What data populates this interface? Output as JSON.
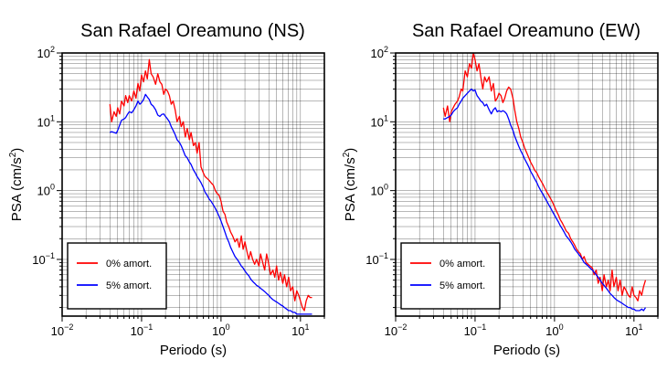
{
  "chart_data": [
    {
      "type": "line",
      "title": "San Rafael Oreamuno (NS)",
      "xlabel": "Periodo (s)",
      "ylabel_base": "PSA (cm/s",
      "ylabel_exp": "2",
      "ylabel_close": ")",
      "xscale": "log",
      "yscale": "log",
      "xlim": [
        0.01,
        20
      ],
      "ylim": [
        0.015,
        100
      ],
      "grid": true,
      "legend_position": "bottom-left",
      "x_ticks": [
        {
          "value": 0.01,
          "base": "10",
          "exp": "−2"
        },
        {
          "value": 0.1,
          "base": "10",
          "exp": "−1"
        },
        {
          "value": 1,
          "base": "10",
          "exp": "0"
        },
        {
          "value": 10,
          "base": "10",
          "exp": "1"
        }
      ],
      "y_ticks": [
        {
          "value": 0.1,
          "base": "10",
          "exp": "−1"
        },
        {
          "value": 1,
          "base": "10",
          "exp": "0"
        },
        {
          "value": 10,
          "base": "10",
          "exp": "1"
        },
        {
          "value": 100,
          "base": "10",
          "exp": "2"
        }
      ],
      "series": [
        {
          "name": "0% amort.",
          "color": "#ff0000",
          "x": [
            0.04,
            0.042,
            0.045,
            0.048,
            0.05,
            0.053,
            0.056,
            0.06,
            0.063,
            0.067,
            0.07,
            0.075,
            0.08,
            0.085,
            0.09,
            0.095,
            0.1,
            0.106,
            0.112,
            0.118,
            0.125,
            0.132,
            0.14,
            0.15,
            0.16,
            0.17,
            0.18,
            0.19,
            0.2,
            0.212,
            0.224,
            0.236,
            0.25,
            0.265,
            0.28,
            0.3,
            0.315,
            0.335,
            0.355,
            0.375,
            0.4,
            0.42,
            0.45,
            0.475,
            0.5,
            0.53,
            0.56,
            0.6,
            0.63,
            0.67,
            0.71,
            0.75,
            0.8,
            0.85,
            0.9,
            0.95,
            1.0,
            1.06,
            1.12,
            1.18,
            1.25,
            1.32,
            1.4,
            1.5,
            1.6,
            1.7,
            1.8,
            1.9,
            2.0,
            2.12,
            2.24,
            2.36,
            2.5,
            2.65,
            2.8,
            3.0,
            3.15,
            3.35,
            3.55,
            3.75,
            4.0,
            4.2,
            4.5,
            4.75,
            5.0,
            5.3,
            5.6,
            6.0,
            6.3,
            6.7,
            7.1,
            7.5,
            8.0,
            8.5,
            9.0,
            9.5,
            10.0,
            10.6,
            11.2,
            11.8,
            12.5,
            13.2,
            14.0
          ],
          "y": [
            18,
            10,
            14,
            12,
            16,
            13,
            20,
            17,
            24,
            19,
            24,
            20,
            28,
            22,
            36,
            28,
            48,
            38,
            55,
            42,
            80,
            50,
            45,
            35,
            50,
            38,
            35,
            25,
            30,
            28,
            24,
            18,
            20,
            15,
            10,
            12,
            8.5,
            10,
            6,
            8,
            5.5,
            7,
            4.5,
            5,
            3.5,
            5,
            2.2,
            1.8,
            1.6,
            1.5,
            1.4,
            1.3,
            1.2,
            1.0,
            0.9,
            0.85,
            0.7,
            0.5,
            0.45,
            0.35,
            0.3,
            0.25,
            0.22,
            0.18,
            0.2,
            0.15,
            0.22,
            0.14,
            0.18,
            0.13,
            0.1,
            0.13,
            0.1,
            0.085,
            0.1,
            0.08,
            0.12,
            0.09,
            0.07,
            0.12,
            0.085,
            0.06,
            0.07,
            0.055,
            0.08,
            0.05,
            0.065,
            0.045,
            0.06,
            0.04,
            0.055,
            0.035,
            0.04,
            0.025,
            0.035,
            0.03,
            0.025,
            0.02,
            0.018,
            0.025,
            0.03,
            0.028,
            0.028
          ]
        },
        {
          "name": "5% amort.",
          "color": "#0000ff",
          "x": [
            0.04,
            0.042,
            0.045,
            0.048,
            0.05,
            0.053,
            0.056,
            0.06,
            0.063,
            0.067,
            0.07,
            0.075,
            0.08,
            0.085,
            0.09,
            0.095,
            0.1,
            0.106,
            0.112,
            0.118,
            0.125,
            0.132,
            0.14,
            0.15,
            0.16,
            0.17,
            0.18,
            0.19,
            0.2,
            0.212,
            0.224,
            0.236,
            0.25,
            0.265,
            0.28,
            0.3,
            0.315,
            0.335,
            0.355,
            0.375,
            0.4,
            0.42,
            0.45,
            0.475,
            0.5,
            0.53,
            0.56,
            0.6,
            0.63,
            0.67,
            0.71,
            0.75,
            0.8,
            0.85,
            0.9,
            0.95,
            1.0,
            1.06,
            1.12,
            1.18,
            1.25,
            1.32,
            1.4,
            1.5,
            1.6,
            1.7,
            1.8,
            1.9,
            2.0,
            2.12,
            2.24,
            2.36,
            2.5,
            2.65,
            2.8,
            3.0,
            3.15,
            3.35,
            3.55,
            3.75,
            4.0,
            4.2,
            4.5,
            4.75,
            5.0,
            5.3,
            5.6,
            6.0,
            6.3,
            6.7,
            7.1,
            7.5,
            8.0,
            8.5,
            9.0,
            9.5,
            10.0,
            10.6,
            11.2,
            11.8,
            12.5,
            13.2,
            14.0
          ],
          "y": [
            7,
            7.2,
            7,
            6.8,
            7.5,
            9,
            10.5,
            11,
            11.5,
            13,
            14,
            13.5,
            15,
            17,
            20,
            18,
            19,
            21,
            25,
            23,
            21,
            18,
            17,
            15,
            12.5,
            12,
            12.8,
            13,
            12,
            11,
            10,
            8.5,
            7.5,
            6.5,
            5.5,
            5,
            4.5,
            3.8,
            3.2,
            3,
            2.6,
            2.4,
            2.0,
            1.8,
            1.6,
            1.45,
            1.3,
            1.1,
            0.95,
            0.85,
            0.75,
            0.7,
            0.62,
            0.55,
            0.48,
            0.42,
            0.36,
            0.3,
            0.25,
            0.21,
            0.18,
            0.15,
            0.13,
            0.11,
            0.1,
            0.09,
            0.08,
            0.075,
            0.068,
            0.062,
            0.058,
            0.052,
            0.048,
            0.045,
            0.042,
            0.04,
            0.038,
            0.036,
            0.034,
            0.032,
            0.03,
            0.028,
            0.026,
            0.025,
            0.024,
            0.023,
            0.022,
            0.021,
            0.02,
            0.019,
            0.018,
            0.018,
            0.017,
            0.017,
            0.016,
            0.016,
            0.016,
            0.016,
            0.016,
            0.016,
            0.016,
            0.016,
            0.016
          ]
        }
      ]
    },
    {
      "type": "line",
      "title": "San Rafael Oreamuno (EW)",
      "xlabel": "Periodo (s)",
      "ylabel_base": "PSA (cm/s",
      "ylabel_exp": "2",
      "ylabel_close": ")",
      "xscale": "log",
      "yscale": "log",
      "xlim": [
        0.01,
        20
      ],
      "ylim": [
        0.015,
        100
      ],
      "grid": true,
      "legend_position": "bottom-left",
      "x_ticks": [
        {
          "value": 0.01,
          "base": "10",
          "exp": "−2"
        },
        {
          "value": 0.1,
          "base": "10",
          "exp": "−1"
        },
        {
          "value": 1,
          "base": "10",
          "exp": "0"
        },
        {
          "value": 10,
          "base": "10",
          "exp": "1"
        }
      ],
      "y_ticks": [
        {
          "value": 0.1,
          "base": "10",
          "exp": "−1"
        },
        {
          "value": 1,
          "base": "10",
          "exp": "0"
        },
        {
          "value": 10,
          "base": "10",
          "exp": "1"
        },
        {
          "value": 100,
          "base": "10",
          "exp": "2"
        }
      ],
      "series": [
        {
          "name": "0% amort.",
          "color": "#ff0000",
          "x": [
            0.04,
            0.042,
            0.045,
            0.048,
            0.05,
            0.053,
            0.056,
            0.06,
            0.063,
            0.067,
            0.07,
            0.075,
            0.08,
            0.085,
            0.09,
            0.095,
            0.1,
            0.106,
            0.112,
            0.118,
            0.125,
            0.132,
            0.14,
            0.15,
            0.16,
            0.17,
            0.18,
            0.19,
            0.2,
            0.212,
            0.224,
            0.236,
            0.25,
            0.265,
            0.28,
            0.3,
            0.315,
            0.335,
            0.355,
            0.375,
            0.4,
            0.42,
            0.45,
            0.475,
            0.5,
            0.53,
            0.56,
            0.6,
            0.63,
            0.67,
            0.71,
            0.75,
            0.8,
            0.85,
            0.9,
            0.95,
            1.0,
            1.06,
            1.12,
            1.18,
            1.25,
            1.32,
            1.4,
            1.5,
            1.6,
            1.7,
            1.8,
            1.9,
            2.0,
            2.12,
            2.24,
            2.36,
            2.5,
            2.65,
            2.8,
            3.0,
            3.15,
            3.35,
            3.55,
            3.75,
            4.0,
            4.2,
            4.5,
            4.75,
            5.0,
            5.3,
            5.6,
            6.0,
            6.3,
            6.7,
            7.1,
            7.5,
            8.0,
            8.5,
            9.0,
            9.5,
            10.0,
            10.6,
            11.2,
            11.8,
            12.5,
            13.2,
            14.0
          ],
          "y": [
            16,
            12,
            17,
            10,
            14,
            16,
            18,
            20,
            23,
            30,
            28,
            55,
            45,
            70,
            60,
            100,
            80,
            55,
            70,
            45,
            30,
            45,
            38,
            45,
            28,
            36,
            20,
            22,
            26,
            24,
            19,
            22,
            28,
            32,
            30,
            22,
            15,
            10,
            8,
            6,
            5,
            4.2,
            3.5,
            3,
            2.6,
            2.3,
            2.0,
            1.8,
            1.6,
            1.4,
            1.25,
            1.1,
            0.95,
            0.85,
            0.75,
            0.67,
            0.58,
            0.5,
            0.44,
            0.38,
            0.34,
            0.3,
            0.26,
            0.24,
            0.2,
            0.18,
            0.16,
            0.14,
            0.13,
            0.12,
            0.1,
            0.11,
            0.09,
            0.085,
            0.08,
            0.075,
            0.06,
            0.07,
            0.045,
            0.055,
            0.035,
            0.06,
            0.04,
            0.05,
            0.035,
            0.07,
            0.04,
            0.055,
            0.035,
            0.05,
            0.03,
            0.04,
            0.035,
            0.03,
            0.028,
            0.04,
            0.03,
            0.028,
            0.025,
            0.035,
            0.03,
            0.04,
            0.05
          ]
        },
        {
          "name": "5% amort.",
          "color": "#0000ff",
          "x": [
            0.04,
            0.042,
            0.045,
            0.048,
            0.05,
            0.053,
            0.056,
            0.06,
            0.063,
            0.067,
            0.07,
            0.075,
            0.08,
            0.085,
            0.09,
            0.095,
            0.1,
            0.106,
            0.112,
            0.118,
            0.125,
            0.132,
            0.14,
            0.15,
            0.16,
            0.17,
            0.18,
            0.19,
            0.2,
            0.212,
            0.224,
            0.236,
            0.25,
            0.265,
            0.28,
            0.3,
            0.315,
            0.335,
            0.355,
            0.375,
            0.4,
            0.42,
            0.45,
            0.475,
            0.5,
            0.53,
            0.56,
            0.6,
            0.63,
            0.67,
            0.71,
            0.75,
            0.8,
            0.85,
            0.9,
            0.95,
            1.0,
            1.06,
            1.12,
            1.18,
            1.25,
            1.32,
            1.4,
            1.5,
            1.6,
            1.7,
            1.8,
            1.9,
            2.0,
            2.12,
            2.24,
            2.36,
            2.5,
            2.65,
            2.8,
            3.0,
            3.15,
            3.35,
            3.55,
            3.75,
            4.0,
            4.2,
            4.5,
            4.75,
            5.0,
            5.3,
            5.6,
            6.0,
            6.3,
            6.7,
            7.1,
            7.5,
            8.0,
            8.5,
            9.0,
            9.5,
            10.0,
            10.6,
            11.2,
            11.8,
            12.5,
            13.2,
            14.0
          ],
          "y": [
            11,
            11,
            11.5,
            12,
            12.5,
            14,
            15,
            16,
            18,
            20,
            22,
            24,
            26,
            28,
            30,
            28,
            29,
            24,
            22,
            20,
            19,
            17,
            18,
            15,
            13,
            15,
            16,
            14,
            14.5,
            14,
            14.5,
            14,
            13,
            11,
            9,
            7.5,
            6.2,
            5.2,
            4.4,
            3.8,
            3.3,
            2.9,
            2.5,
            2.2,
            1.9,
            1.7,
            1.5,
            1.3,
            1.15,
            1.0,
            0.9,
            0.8,
            0.7,
            0.62,
            0.55,
            0.49,
            0.44,
            0.39,
            0.35,
            0.31,
            0.28,
            0.25,
            0.22,
            0.2,
            0.18,
            0.16,
            0.14,
            0.13,
            0.12,
            0.11,
            0.1,
            0.09,
            0.085,
            0.08,
            0.075,
            0.07,
            0.065,
            0.06,
            0.055,
            0.05,
            0.045,
            0.042,
            0.038,
            0.035,
            0.032,
            0.03,
            0.028,
            0.026,
            0.025,
            0.024,
            0.023,
            0.022,
            0.021,
            0.02,
            0.02,
            0.019,
            0.019,
            0.018,
            0.018,
            0.018,
            0.019,
            0.018,
            0.02
          ]
        }
      ]
    }
  ]
}
